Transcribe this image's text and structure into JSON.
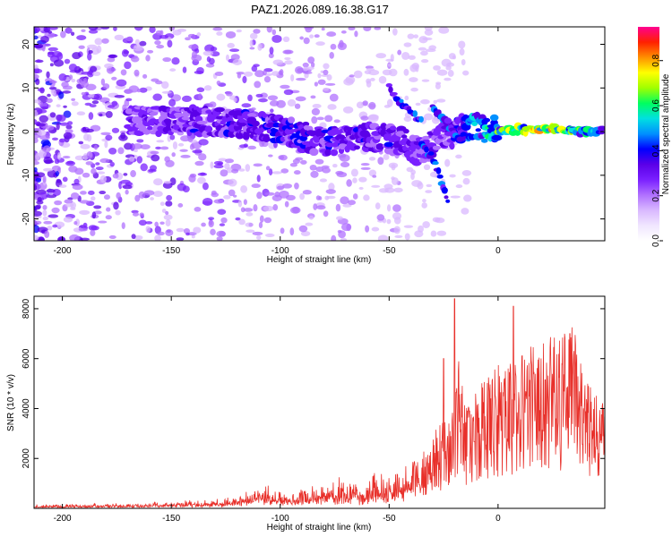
{
  "figure_title": "PAZ1.2026.089.16.38.G17",
  "colors": {
    "line": "#e8302a",
    "colormap": [
      "#ffffff",
      "#f0e6ff",
      "#d9b8ff",
      "#b070ff",
      "#7a20ff",
      "#5a00e8",
      "#0000ff",
      "#0090ff",
      "#00e0e0",
      "#00ff60",
      "#a0ff00",
      "#ffff00",
      "#ff9000",
      "#ff2000",
      "#ff0090"
    ]
  },
  "chart_data": [
    {
      "type": "heatmap",
      "title": "",
      "xlabel": "Height of straight line (km)",
      "ylabel": "Frequency (Hz)",
      "xlim": [
        -213,
        49
      ],
      "ylim": [
        -25,
        24
      ],
      "xticks": [
        -200,
        -150,
        -100,
        -50,
        0
      ],
      "xtick_labels": [
        "-200",
        "-150",
        "-100",
        "-50",
        "0"
      ],
      "yticks": [
        -20,
        -10,
        0,
        10,
        20
      ],
      "ytick_labels": [
        "-20",
        "-10",
        "0",
        "10",
        "20"
      ],
      "colorbar": {
        "label": "Normalized spectral amplitude",
        "range": [
          0,
          0.95
        ],
        "ticks": [
          0,
          0.2,
          0.4,
          0.6,
          0.8
        ],
        "tick_labels": [
          "0.0",
          "0.2",
          "0.4",
          "0.6",
          "0.8"
        ]
      },
      "ridge": {
        "height_km": [
          -160,
          -140,
          -120,
          -100,
          -80,
          -60,
          -45,
          -35,
          -25,
          -15,
          0,
          20,
          49
        ],
        "freq_hz": [
          2.5,
          2.5,
          2,
          0.5,
          -2.5,
          -1,
          -2,
          -5,
          -1,
          1,
          0.5,
          0.5,
          0
        ],
        "amplitude": [
          0.3,
          0.35,
          0.35,
          0.4,
          0.4,
          0.35,
          0.35,
          0.3,
          0.35,
          0.45,
          0.65,
          0.8,
          0.5
        ]
      },
      "secondary_tracks": [
        {
          "height_km": [
            -50,
            -45,
            -40,
            -35
          ],
          "freq_hz": [
            10,
            7,
            5,
            2
          ]
        },
        {
          "height_km": [
            -35,
            -30,
            -27,
            -23
          ],
          "freq_hz": [
            -3,
            -6,
            -10,
            -16
          ]
        },
        {
          "height_km": [
            -30,
            -25,
            -20,
            -17
          ],
          "freq_hz": [
            6,
            3,
            0,
            -2
          ]
        }
      ]
    },
    {
      "type": "line",
      "title": "",
      "xlabel": "Height of straight line (km)",
      "ylabel": "SNR (10 * v/v)",
      "xlim": [
        -213,
        49
      ],
      "ylim": [
        0,
        8500
      ],
      "xticks": [
        -200,
        -150,
        -100,
        -50,
        0
      ],
      "xtick_labels": [
        "-200",
        "-150",
        "-100",
        "-50",
        "0"
      ],
      "yticks": [
        2000,
        4000,
        6000,
        8000
      ],
      "ytick_labels": [
        "2000",
        "4000",
        "6000",
        "8000"
      ],
      "envelope": {
        "height_km": [
          -213,
          -180,
          -150,
          -120,
          -110,
          -100,
          -80,
          -60,
          -45,
          -35,
          -30,
          -25,
          -20,
          -18,
          -15,
          -10,
          -5,
          0,
          5,
          10,
          20,
          30,
          35,
          40,
          45,
          49
        ],
        "snr": [
          120,
          150,
          200,
          350,
          700,
          600,
          800,
          1000,
          1300,
          1800,
          2500,
          3000,
          3800,
          5000,
          3500,
          4000,
          4500,
          4800,
          5300,
          5200,
          5600,
          6000,
          6300,
          4500,
          3800,
          3800
        ]
      },
      "peaks": {
        "height_km": [
          -20,
          7,
          33,
          -25
        ],
        "snr": [
          8400,
          8100,
          7000,
          6000
        ]
      }
    }
  ]
}
